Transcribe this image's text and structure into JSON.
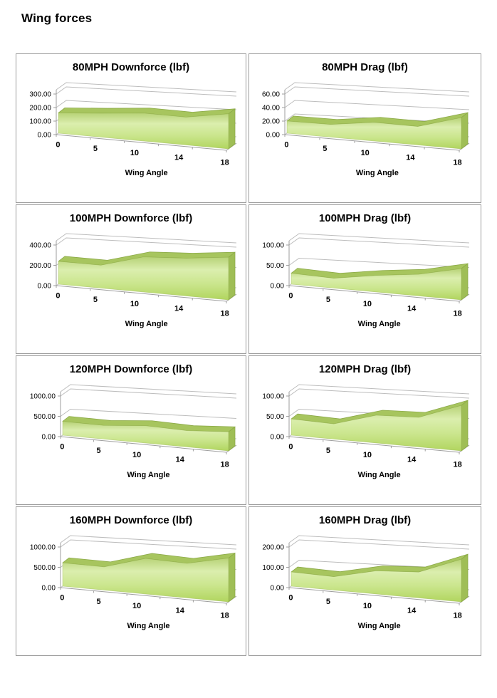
{
  "page": {
    "title": "Wing forces"
  },
  "colors": {
    "box_border": "#9b9b9b",
    "gridline": "#bdbdbd",
    "axis": "#9e9e9e",
    "text": "#000000",
    "area_top_strip": "#a7c55e",
    "area_side_cap": "#9fbe56",
    "area_edge": "#8caa48",
    "area_face_gradient": [
      "#b7d276",
      "#dbeeae",
      "#cbe68e",
      "#b1d55f"
    ]
  },
  "chart_data": [
    {
      "type": "area",
      "title": "80MPH Downforce (lbf)",
      "xlabel": "Wing Angle",
      "categories": [
        0,
        5,
        10,
        14,
        18
      ],
      "x_tick_labels": [
        "0",
        "5",
        "10",
        "14",
        "18"
      ],
      "values": [
        150,
        160,
        172,
        158,
        185
      ],
      "ylim": [
        0,
        300
      ],
      "y_ticks": [
        "0.00",
        "100.00",
        "200.00",
        "300.00"
      ],
      "grid": true,
      "legend": false
    },
    {
      "type": "area",
      "title": "80MPH Drag (lbf)",
      "xlabel": "Wing Angle",
      "categories": [
        0,
        5,
        10,
        14,
        18
      ],
      "x_tick_labels": [
        "0",
        "5",
        "10",
        "14",
        "18"
      ],
      "values": [
        18,
        17,
        23,
        21,
        33
      ],
      "ylim": [
        0,
        60
      ],
      "y_ticks": [
        "0.00",
        "20.00",
        "40.00",
        "60.00"
      ],
      "grid": true,
      "legend": false
    },
    {
      "type": "area",
      "title": "100MPH Downforce (lbf)",
      "xlabel": "Wing Angle",
      "categories": [
        0,
        5,
        10,
        14,
        18
      ],
      "x_tick_labels": [
        "0",
        "5",
        "10",
        "14",
        "18"
      ],
      "values": [
        225,
        205,
        288,
        286,
        300
      ],
      "ylim": [
        0,
        400
      ],
      "y_ticks": [
        "0.00",
        "200.00",
        "400.00"
      ],
      "grid": true,
      "legend": false
    },
    {
      "type": "area",
      "title": "100MPH Drag (lbf)",
      "xlabel": "Wing Angle",
      "categories": [
        0,
        5,
        10,
        14,
        18
      ],
      "x_tick_labels": [
        "0",
        "5",
        "10",
        "14",
        "18"
      ],
      "values": [
        27,
        22,
        34,
        41,
        55
      ],
      "ylim": [
        0,
        100
      ],
      "y_ticks": [
        "0.00",
        "50.00",
        "100.00"
      ],
      "grid": true,
      "legend": false
    },
    {
      "type": "area",
      "title": "120MPH Downforce (lbf)",
      "xlabel": "Wing Angle",
      "categories": [
        0,
        5,
        10,
        14,
        18
      ],
      "x_tick_labels": [
        "0",
        "5",
        "10",
        "14",
        "18"
      ],
      "values": [
        340,
        305,
        355,
        308,
        335
      ],
      "ylim": [
        0,
        1000
      ],
      "y_ticks": [
        "0.00",
        "500.00",
        "1000.00"
      ],
      "grid": true,
      "legend": false
    },
    {
      "type": "area",
      "title": "120MPH Drag (lbf)",
      "xlabel": "Wing Angle",
      "categories": [
        0,
        5,
        10,
        14,
        18
      ],
      "x_tick_labels": [
        "0",
        "5",
        "10",
        "14",
        "18"
      ],
      "values": [
        40,
        34,
        57,
        56,
        80
      ],
      "ylim": [
        0,
        100
      ],
      "y_ticks": [
        "0.00",
        "50.00",
        "100.00"
      ],
      "grid": true,
      "legend": false
    },
    {
      "type": "area",
      "title": "160MPH Downforce (lbf)",
      "xlabel": "Wing Angle",
      "categories": [
        0,
        5,
        10,
        14,
        18
      ],
      "x_tick_labels": [
        "0",
        "5",
        "10",
        "14",
        "18"
      ],
      "values": [
        575,
        520,
        730,
        655,
        770
      ],
      "ylim": [
        0,
        1000
      ],
      "y_ticks": [
        "0.00",
        "500.00",
        "1000.00"
      ],
      "grid": true,
      "legend": false
    },
    {
      "type": "area",
      "title": "160MPH Drag (lbf)",
      "xlabel": "Wing Angle",
      "categories": [
        0,
        5,
        10,
        14,
        18
      ],
      "x_tick_labels": [
        "0",
        "5",
        "10",
        "14",
        "18"
      ],
      "values": [
        70,
        60,
        95,
        98,
        150
      ],
      "ylim": [
        0,
        200
      ],
      "y_ticks": [
        "0.00",
        "100.00",
        "200.00"
      ],
      "grid": true,
      "legend": false
    }
  ]
}
